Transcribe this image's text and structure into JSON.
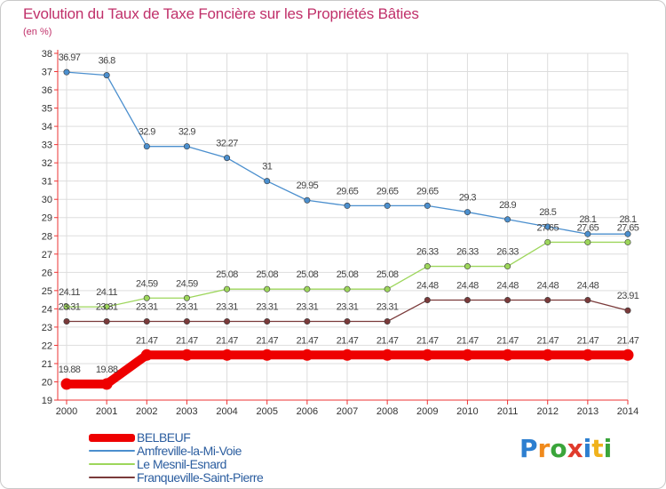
{
  "title": "Evolution du Taux de Taxe Foncière sur les Propriétés Bâties",
  "unit_label": "(en %)",
  "logo": {
    "p": "P",
    "r": "r",
    "o": "o",
    "x": "x",
    "i1": "i",
    "t": "t",
    "i2": "i"
  },
  "chart_data": {
    "type": "line",
    "title": "Evolution du Taux de Taxe Foncière sur les Propriétés Bâties",
    "ylabel": "(en %)",
    "xlabel": "",
    "x": [
      "2000",
      "2001",
      "2002",
      "2003",
      "2004",
      "2005",
      "2006",
      "2007",
      "2008",
      "2009",
      "2010",
      "2011",
      "2012",
      "2013",
      "2014"
    ],
    "ylim": [
      19,
      38
    ],
    "yticks": [
      19,
      20,
      21,
      22,
      23,
      24,
      25,
      26,
      27,
      28,
      29,
      30,
      31,
      32,
      33,
      34,
      35,
      36,
      37,
      38
    ],
    "grid": true,
    "legend_position": "bottom-left",
    "series": [
      {
        "name": "BELBEUF",
        "color": "#ee0000",
        "values": [
          19.88,
          19.88,
          21.47,
          21.47,
          21.47,
          21.47,
          21.47,
          21.47,
          21.47,
          21.47,
          21.47,
          21.47,
          21.47,
          21.47,
          21.47
        ],
        "labels": [
          "19.88",
          "19.88",
          "21.47",
          "21.47",
          "21.47",
          "21.47",
          "21.47",
          "21.47",
          "21.47",
          "21.47",
          "21.47",
          "21.47",
          "21.47",
          "21.47",
          "21.47"
        ]
      },
      {
        "name": "Amfreville-la-Mi-Voie",
        "color": "#4b8fce",
        "values": [
          36.97,
          36.8,
          32.9,
          32.9,
          32.27,
          31,
          29.95,
          29.65,
          29.65,
          29.65,
          29.3,
          28.9,
          28.5,
          28.1,
          28.1
        ],
        "labels": [
          "36.97",
          "36.8",
          "32.9",
          "32.9",
          "32.27",
          "31",
          "29.95",
          "29.65",
          "29.65",
          "29.65",
          "29.3",
          "28.9",
          "28.5",
          "28.1",
          "28.1"
        ]
      },
      {
        "name": "Le Mesnil-Esnard",
        "color": "#9dd65b",
        "values": [
          24.11,
          24.11,
          24.59,
          24.59,
          25.08,
          25.08,
          25.08,
          25.08,
          25.08,
          26.33,
          26.33,
          26.33,
          27.65,
          27.65,
          27.65
        ],
        "labels": [
          "24.11",
          "24.11",
          "24.59",
          "24.59",
          "25.08",
          "25.08",
          "25.08",
          "25.08",
          "25.08",
          "26.33",
          "26.33",
          "26.33",
          "27.65",
          "27.65",
          "27.65"
        ]
      },
      {
        "name": "Franqueville-Saint-Pierre",
        "color": "#7a3a3a",
        "values": [
          23.31,
          23.31,
          23.31,
          23.31,
          23.31,
          23.31,
          23.31,
          23.31,
          23.31,
          24.48,
          24.48,
          24.48,
          24.48,
          24.48,
          23.91
        ],
        "labels": [
          "23.31",
          "23.31",
          "23.31",
          "23.31",
          "23.31",
          "23.31",
          "23.31",
          "23.31",
          "23.31",
          "24.48",
          "24.48",
          "24.48",
          "24.48",
          "24.48",
          "23.91"
        ]
      }
    ]
  }
}
